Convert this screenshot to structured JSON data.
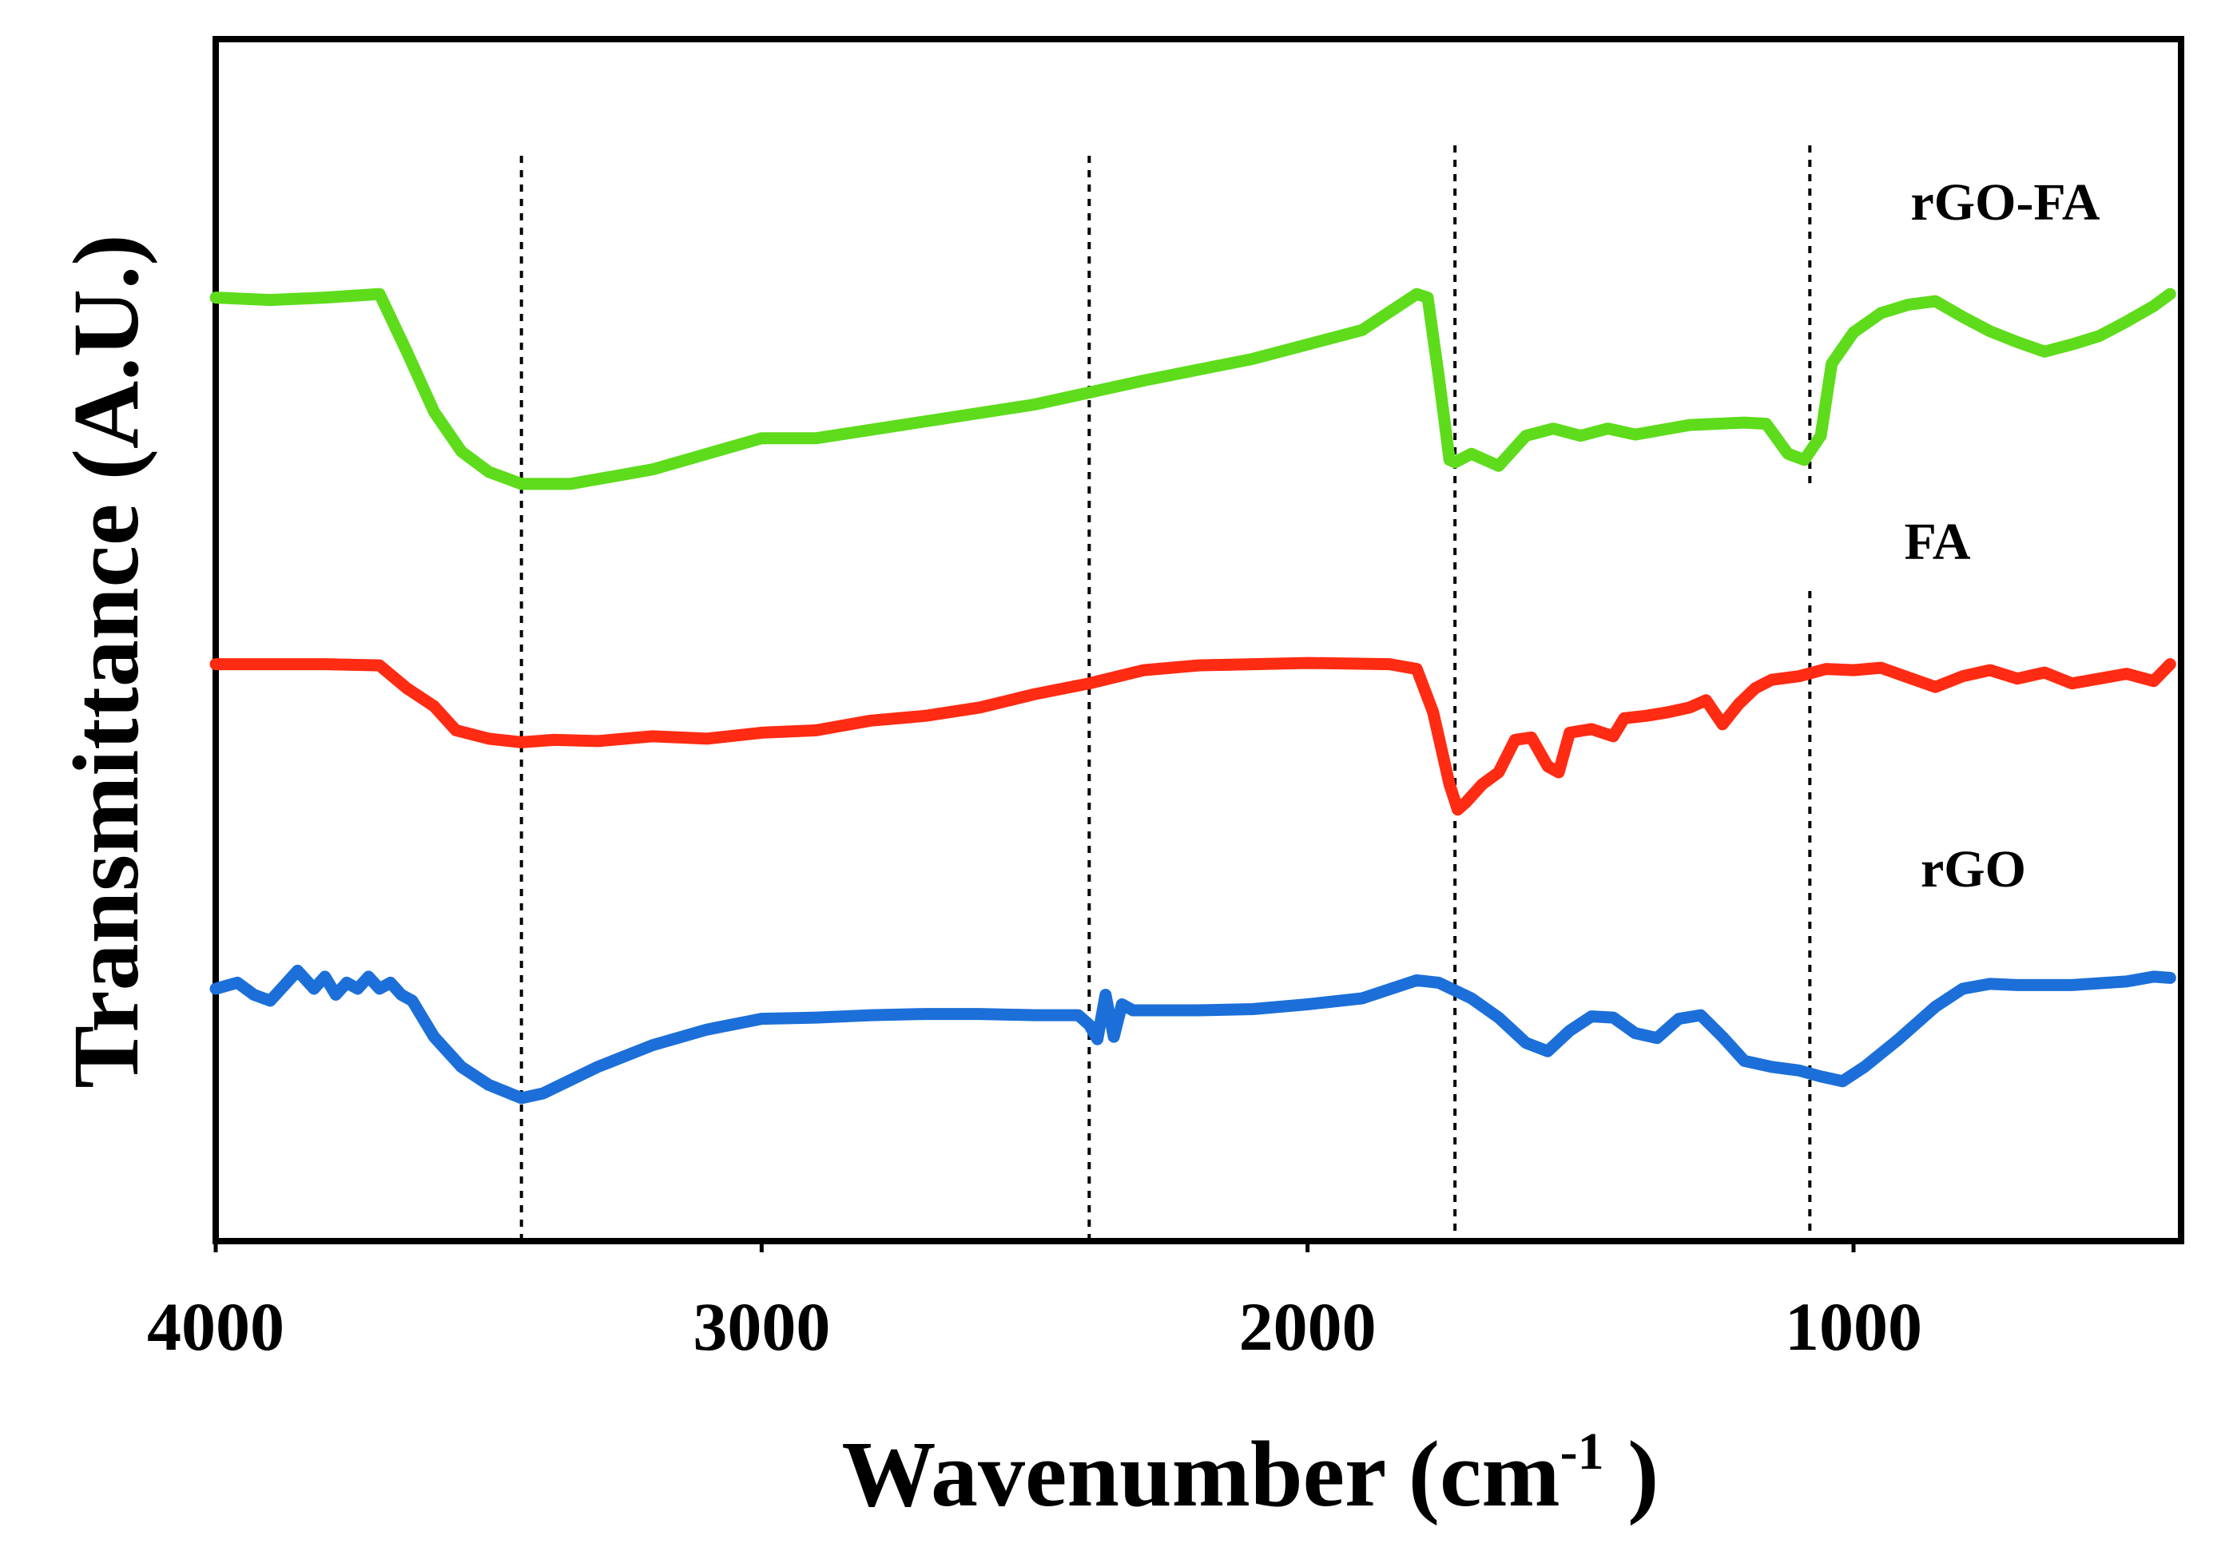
{
  "chart_data": {
    "type": "line",
    "title": "",
    "xlabel": "Wavenumber (cm",
    "xlabel_superscript": "-1",
    "xlabel_suffix": " )",
    "ylabel": "Transmittance (A.U.)",
    "xlim": [
      4000,
      400
    ],
    "x_reversed": true,
    "ylim": [
      0,
      100
    ],
    "y_ticks_shown": false,
    "grid": false,
    "xticks": [
      4000,
      3000,
      2000,
      1000
    ],
    "xtick_labels": [
      "4000",
      "3000",
      "2000",
      "1000"
    ],
    "reference_lines": [
      3440,
      2400,
      1730,
      1080
    ],
    "series": [
      {
        "name": "rGO-FA",
        "color": "#5edc1c",
        "points": [
          [
            4000,
            78.5
          ],
          [
            3900,
            78.3
          ],
          [
            3800,
            78.5
          ],
          [
            3700,
            78.8
          ],
          [
            3650,
            74
          ],
          [
            3600,
            69
          ],
          [
            3550,
            65.7
          ],
          [
            3500,
            64
          ],
          [
            3440,
            63
          ],
          [
            3350,
            63
          ],
          [
            3200,
            64.2
          ],
          [
            3000,
            66.8
          ],
          [
            2900,
            66.8
          ],
          [
            2700,
            68.2
          ],
          [
            2500,
            69.6
          ],
          [
            2400,
            70.6
          ],
          [
            2300,
            71.6
          ],
          [
            2100,
            73.4
          ],
          [
            1900,
            75.8
          ],
          [
            1800,
            78.8
          ],
          [
            1780,
            78.5
          ],
          [
            1760,
            72
          ],
          [
            1740,
            65
          ],
          [
            1730,
            64.8
          ],
          [
            1700,
            65.5
          ],
          [
            1650,
            64.5
          ],
          [
            1600,
            67
          ],
          [
            1550,
            67.6
          ],
          [
            1500,
            67
          ],
          [
            1450,
            67.6
          ],
          [
            1400,
            67.1
          ],
          [
            1300,
            67.9
          ],
          [
            1200,
            68.1
          ],
          [
            1160,
            68
          ],
          [
            1120,
            65.5
          ],
          [
            1090,
            65
          ],
          [
            1060,
            67
          ],
          [
            1040,
            73
          ],
          [
            1000,
            75.6
          ],
          [
            950,
            77.2
          ],
          [
            900,
            77.9
          ],
          [
            850,
            78.2
          ],
          [
            800,
            76.9
          ],
          [
            750,
            75.7
          ],
          [
            700,
            74.8
          ],
          [
            650,
            74
          ],
          [
            600,
            74.6
          ],
          [
            550,
            75.3
          ],
          [
            500,
            76.5
          ],
          [
            450,
            77.8
          ],
          [
            420,
            78.8
          ]
        ]
      },
      {
        "name": "FA",
        "color": "#ff2b12",
        "points": [
          [
            4000,
            48
          ],
          [
            3800,
            48
          ],
          [
            3700,
            47.9
          ],
          [
            3650,
            46
          ],
          [
            3600,
            44.5
          ],
          [
            3560,
            42.5
          ],
          [
            3500,
            41.8
          ],
          [
            3440,
            41.5
          ],
          [
            3380,
            41.7
          ],
          [
            3300,
            41.6
          ],
          [
            3200,
            42
          ],
          [
            3100,
            41.8
          ],
          [
            3000,
            42.3
          ],
          [
            2900,
            42.5
          ],
          [
            2800,
            43.3
          ],
          [
            2700,
            43.7
          ],
          [
            2600,
            44.4
          ],
          [
            2500,
            45.5
          ],
          [
            2400,
            46.4
          ],
          [
            2300,
            47.5
          ],
          [
            2200,
            47.9
          ],
          [
            2000,
            48.1
          ],
          [
            1850,
            48
          ],
          [
            1800,
            47.6
          ],
          [
            1770,
            44
          ],
          [
            1740,
            38
          ],
          [
            1725,
            35.9
          ],
          [
            1710,
            36.5
          ],
          [
            1680,
            38
          ],
          [
            1650,
            39
          ],
          [
            1620,
            41.7
          ],
          [
            1590,
            41.9
          ],
          [
            1560,
            39.5
          ],
          [
            1540,
            39
          ],
          [
            1520,
            42.3
          ],
          [
            1480,
            42.6
          ],
          [
            1440,
            42
          ],
          [
            1420,
            43.5
          ],
          [
            1380,
            43.7
          ],
          [
            1340,
            44
          ],
          [
            1300,
            44.4
          ],
          [
            1270,
            45
          ],
          [
            1240,
            43
          ],
          [
            1210,
            44.7
          ],
          [
            1180,
            46
          ],
          [
            1150,
            46.7
          ],
          [
            1100,
            47
          ],
          [
            1050,
            47.6
          ],
          [
            1000,
            47.5
          ],
          [
            950,
            47.7
          ],
          [
            900,
            46.9
          ],
          [
            850,
            46.1
          ],
          [
            800,
            47
          ],
          [
            750,
            47.5
          ],
          [
            700,
            46.8
          ],
          [
            650,
            47.3
          ],
          [
            600,
            46.4
          ],
          [
            550,
            46.8
          ],
          [
            500,
            47.2
          ],
          [
            450,
            46.6
          ],
          [
            420,
            48
          ]
        ]
      },
      {
        "name": "rGO",
        "color": "#1c6fd8",
        "points": [
          [
            4000,
            21
          ],
          [
            3960,
            21.5
          ],
          [
            3930,
            20.5
          ],
          [
            3900,
            20
          ],
          [
            3880,
            21
          ],
          [
            3850,
            22.5
          ],
          [
            3820,
            21
          ],
          [
            3800,
            22
          ],
          [
            3780,
            20.5
          ],
          [
            3760,
            21.5
          ],
          [
            3740,
            21
          ],
          [
            3720,
            22
          ],
          [
            3700,
            21
          ],
          [
            3680,
            21.5
          ],
          [
            3660,
            20.5
          ],
          [
            3640,
            20
          ],
          [
            3600,
            17
          ],
          [
            3550,
            14.5
          ],
          [
            3500,
            13
          ],
          [
            3440,
            11.9
          ],
          [
            3400,
            12.3
          ],
          [
            3300,
            14.5
          ],
          [
            3200,
            16.3
          ],
          [
            3100,
            17.6
          ],
          [
            3000,
            18.5
          ],
          [
            2900,
            18.6
          ],
          [
            2800,
            18.8
          ],
          [
            2700,
            18.9
          ],
          [
            2600,
            18.9
          ],
          [
            2500,
            18.8
          ],
          [
            2420,
            18.8
          ],
          [
            2400,
            18
          ],
          [
            2385,
            16.8
          ],
          [
            2370,
            20.5
          ],
          [
            2355,
            17
          ],
          [
            2340,
            19.7
          ],
          [
            2320,
            19.2
          ],
          [
            2300,
            19.2
          ],
          [
            2200,
            19.2
          ],
          [
            2100,
            19.3
          ],
          [
            2000,
            19.7
          ],
          [
            1900,
            20.2
          ],
          [
            1800,
            21.7
          ],
          [
            1760,
            21.5
          ],
          [
            1700,
            20.2
          ],
          [
            1650,
            18.6
          ],
          [
            1600,
            16.5
          ],
          [
            1560,
            15.8
          ],
          [
            1520,
            17.5
          ],
          [
            1480,
            18.7
          ],
          [
            1440,
            18.6
          ],
          [
            1400,
            17.3
          ],
          [
            1360,
            16.9
          ],
          [
            1320,
            18.5
          ],
          [
            1280,
            18.8
          ],
          [
            1240,
            17
          ],
          [
            1200,
            15
          ],
          [
            1150,
            14.5
          ],
          [
            1100,
            14.2
          ],
          [
            1060,
            13.7
          ],
          [
            1020,
            13.3
          ],
          [
            980,
            14.5
          ],
          [
            920,
            16.7
          ],
          [
            850,
            19.5
          ],
          [
            800,
            21
          ],
          [
            750,
            21.4
          ],
          [
            700,
            21.3
          ],
          [
            600,
            21.3
          ],
          [
            500,
            21.6
          ],
          [
            450,
            22
          ],
          [
            420,
            21.9
          ]
        ]
      }
    ]
  }
}
